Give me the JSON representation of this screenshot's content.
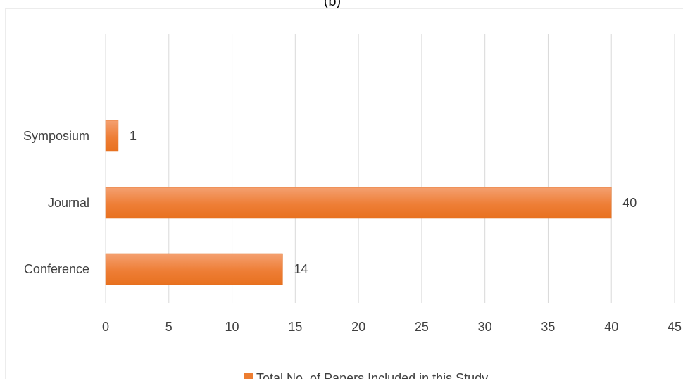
{
  "chart_data": {
    "type": "bar",
    "orientation": "horizontal",
    "title": "(b)",
    "categories": [
      "Conference",
      "Journal",
      "Symposium"
    ],
    "series": [
      {
        "name": "Total No. of Papers Included in this Study",
        "values": [
          14,
          40,
          1
        ],
        "color": "#ED7D31"
      }
    ],
    "xlim": [
      0,
      45
    ],
    "xticks": [
      0,
      5,
      10,
      15,
      20,
      25,
      30,
      35,
      40,
      45
    ],
    "grid": "vertical",
    "legend_position": "bottom",
    "data_labels": true
  }
}
